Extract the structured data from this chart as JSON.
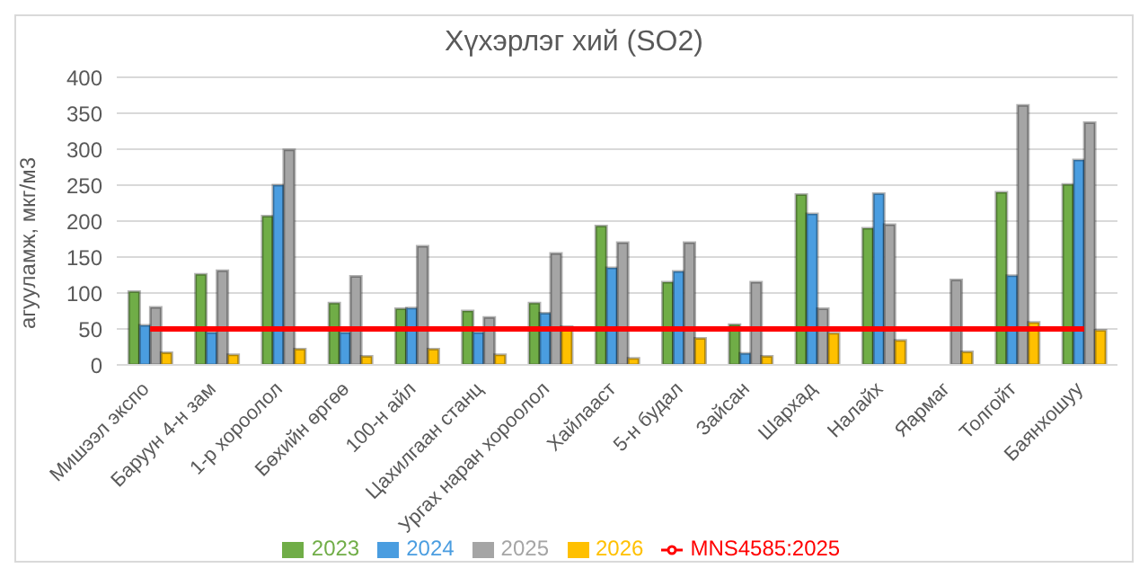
{
  "chart_data": {
    "type": "bar",
    "title": "Хүхэрлэг хий (SO2)",
    "ylabel": "агууламж, мкг/м3",
    "categories": [
      "Мишээл экспо",
      "Баруун 4-н зам",
      "1-р хороолол",
      "Бөхийн өргөө",
      "100-н айл",
      "Цахилгаан станц",
      "Ургах наран хороолол",
      "Хайлааст",
      "5-н будал",
      "Зайсан",
      "Шархад",
      "Налайх",
      "Яармаг",
      "Толгойт",
      "Баянхошуу"
    ],
    "series": [
      {
        "name": "2023",
        "color": "#70ad47",
        "values": [
          102,
          126,
          207,
          86,
          78,
          75,
          86,
          193,
          115,
          56,
          237,
          190,
          null,
          240,
          251
        ]
      },
      {
        "name": "2024",
        "color": "#4a9de0",
        "values": [
          55,
          45,
          250,
          45,
          79,
          45,
          72,
          135,
          130,
          16,
          210,
          238,
          null,
          124,
          285
        ]
      },
      {
        "name": "2025",
        "color": "#a5a5a5",
        "values": [
          80,
          131,
          299,
          123,
          165,
          66,
          155,
          170,
          170,
          115,
          78,
          195,
          118,
          361,
          337
        ]
      },
      {
        "name": "2026",
        "color": "#ffc000",
        "values": [
          17,
          14,
          22,
          12,
          22,
          14,
          53,
          9,
          37,
          12,
          44,
          34,
          18,
          59,
          48
        ]
      },
      {
        "name": "MNS4585:2025",
        "type": "line",
        "color": "#ff0000",
        "marker": "none",
        "values": [
          50,
          50,
          50,
          50,
          50,
          50,
          50,
          50,
          50,
          50,
          50,
          50,
          50,
          50,
          50
        ]
      }
    ],
    "ylim": [
      0,
      400
    ],
    "yticks": [
      0,
      50,
      100,
      150,
      200,
      250,
      300,
      350,
      400
    ],
    "grid": "y",
    "legend": "bottom"
  }
}
